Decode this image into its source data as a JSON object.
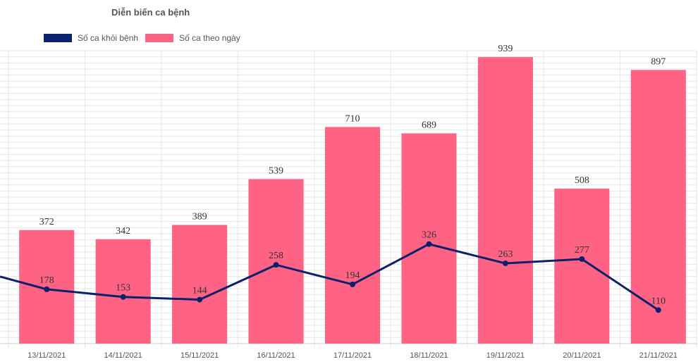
{
  "chart_data": {
    "type": "bar",
    "title": "Diễn biến ca bệnh",
    "categories": [
      "13/11/2021",
      "14/11/2021",
      "15/11/2021",
      "16/11/2021",
      "17/11/2021",
      "18/11/2021",
      "19/11/2021",
      "20/11/2021",
      "21/11/2021"
    ],
    "series": [
      {
        "name": "Số ca theo ngày",
        "type": "bar",
        "color": "#ff6384",
        "values": [
          372,
          342,
          389,
          539,
          710,
          689,
          939,
          508,
          897
        ]
      },
      {
        "name": "Số ca khỏi bệnh",
        "type": "line",
        "color": "#0c216c",
        "values": [
          178,
          153,
          144,
          258,
          194,
          326,
          263,
          277,
          110
        ]
      }
    ],
    "ylim": [
      0,
      960
    ],
    "grid": true,
    "legend": "top-left"
  }
}
